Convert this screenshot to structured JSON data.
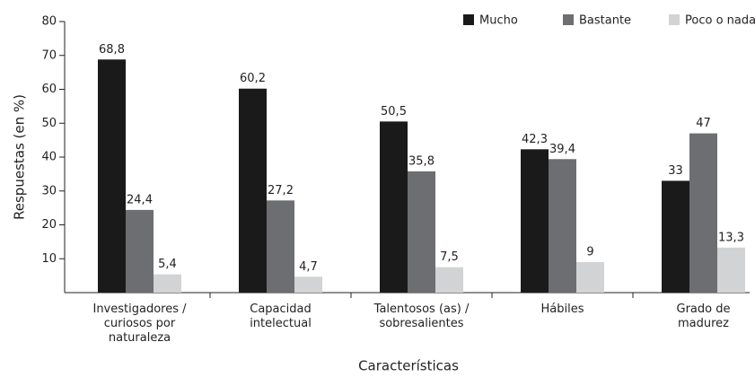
{
  "chart_data": {
    "type": "bar",
    "x_label": "Características",
    "y_label": "Respuestas (en %)",
    "categories": [
      [
        "Investigadores /",
        "curiosos por",
        "naturaleza"
      ],
      [
        "Capacidad",
        "intelectual"
      ],
      [
        "Talentosos (as) /",
        "sobresalientes"
      ],
      [
        "Hábiles"
      ],
      [
        "Grado de",
        "madurez"
      ]
    ],
    "series": [
      {
        "name": "Mucho",
        "color": "#1a1a1a",
        "values": [
          68.8,
          60.2,
          50.5,
          42.3,
          33
        ],
        "value_labels": [
          "68,8",
          "60,2",
          "50,5",
          "42,3",
          "33"
        ]
      },
      {
        "name": "Bastante",
        "color": "#6d6e71",
        "values": [
          24.4,
          27.2,
          35.8,
          39.4,
          47
        ],
        "value_labels": [
          "24,4",
          "27,2",
          "35,8",
          "39,4",
          "47"
        ]
      },
      {
        "name": "Poco o nada",
        "color": "#d1d3d4",
        "values": [
          5.4,
          4.7,
          7.5,
          9,
          13.3
        ],
        "value_labels": [
          "5,4",
          "4,7",
          "7,5",
          "9",
          "13,3"
        ]
      }
    ],
    "ylim": [
      0,
      80
    ],
    "yticks": [
      10,
      20,
      30,
      40,
      50,
      60,
      70,
      80
    ],
    "legend": "top-right"
  }
}
